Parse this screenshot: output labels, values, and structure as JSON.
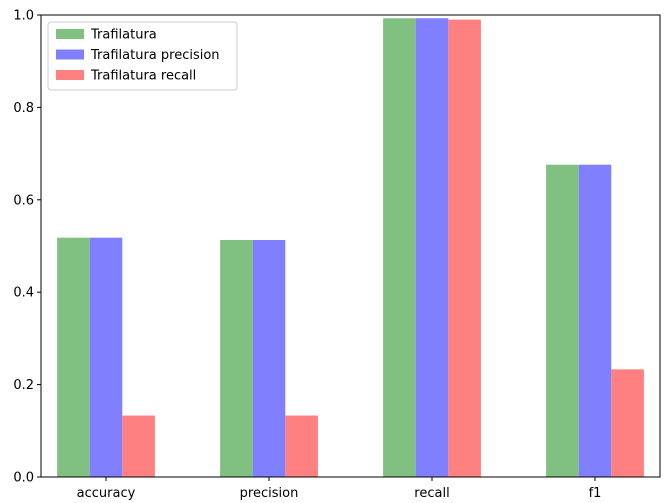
{
  "chart_data": {
    "type": "bar",
    "title": "",
    "xlabel": "",
    "ylabel": "",
    "categories": [
      "accuracy",
      "precision",
      "recall",
      "f1"
    ],
    "series": [
      {
        "name": "Trafilatura",
        "color": "#80c080",
        "values": [
          0.518,
          0.513,
          0.993,
          0.676
        ]
      },
      {
        "name": "Trafilatura precision",
        "color": "#8080ff",
        "values": [
          0.518,
          0.513,
          0.993,
          0.676
        ]
      },
      {
        "name": "Trafilatura recall",
        "color": "#ff8080",
        "values": [
          0.133,
          0.133,
          0.99,
          0.233
        ]
      }
    ],
    "ylim": [
      0,
      1.0
    ],
    "yticks": [
      "0.0",
      "0.2",
      "0.4",
      "0.6",
      "0.8",
      "1.0"
    ],
    "grid": false,
    "legend_position": "top-left"
  }
}
